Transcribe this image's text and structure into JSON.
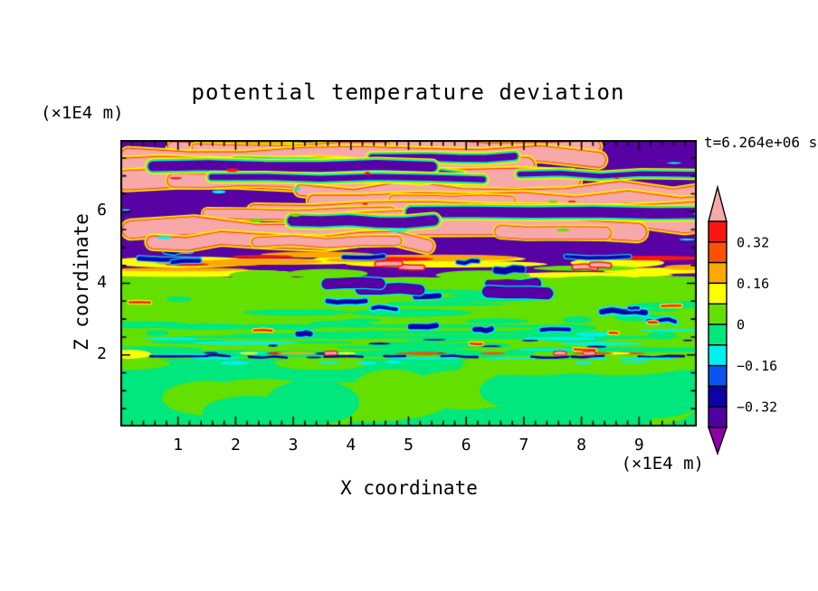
{
  "chart_data": {
    "type": "heatmap",
    "subtype": "filled_contour",
    "title": "potential temperature deviation",
    "time_annotation": "t=6.264e+06 s",
    "xlabel": "X coordinate",
    "ylabel": "Z coordinate",
    "x_unit": "(×1E4 m)",
    "z_unit": "(×1E4 m)",
    "xlim": [
      0,
      10
    ],
    "zlim": [
      0,
      8
    ],
    "x_ticks": [
      1,
      2,
      3,
      4,
      5,
      6,
      7,
      8,
      9
    ],
    "z_ticks": [
      2,
      4,
      6
    ],
    "x_minor_step": 0.2,
    "z_minor_step": 0.5,
    "grid": false,
    "contour_interval": 0.08,
    "colorbar": {
      "orientation": "vertical",
      "position": "right",
      "tick_labels": [
        "0.32",
        "0.16",
        "0",
        "−0.16",
        "−0.32"
      ],
      "label_boundary_indices": [
        1,
        3,
        5,
        7,
        9
      ],
      "levels": [
        0.4,
        0.32,
        0.24,
        0.16,
        0.08,
        0.0,
        -0.08,
        -0.16,
        -0.24,
        -0.32,
        -0.4
      ],
      "colors": [
        "#F7A8A8",
        "#F81613",
        "#FB5005",
        "#FDA800",
        "#FFFF00",
        "#64E000",
        "#00E87D",
        "#00F0F0",
        "#0A55F0",
        "#0D00A8",
        "#4E00A0",
        "#8C00A8"
      ]
    },
    "palette": {
      "pink": "#F7A8A8",
      "red": "#F81613",
      "orangered": "#FB5005",
      "orange": "#FDA800",
      "yellow": "#FFFF00",
      "chartreuse": "#64E000",
      "spring": "#00E87D",
      "cyan": "#00F0F0",
      "blue": "#0A55F0",
      "navy": "#0D00A8",
      "indigo": "#4E00A0",
      "purple": "#8C00A8",
      "field_purple": "#5801A4"
    },
    "zones": [
      {
        "z_range": [
          0,
          2
        ],
        "description": "convective cells: spring-green (slightly negative) blobs mixed with chartreuse (slightly positive); thin multicolored interface line at z=2"
      },
      {
        "z_range": [
          2,
          4
        ],
        "description": "near-zero chartreuse field with thin spring-green/cyan horizontal streaks and small dark-blue anomalies"
      },
      {
        "z_range": [
          4,
          5
        ],
        "description": "mixing band of yellow/orange/red streaks with blue and purple patches"
      },
      {
        "z_range": [
          5,
          8
        ],
        "description": "large-amplitude layers: pink (> 0.40) and dark purple (< -0.40) bands separated by rainbow contour fringes"
      }
    ]
  }
}
